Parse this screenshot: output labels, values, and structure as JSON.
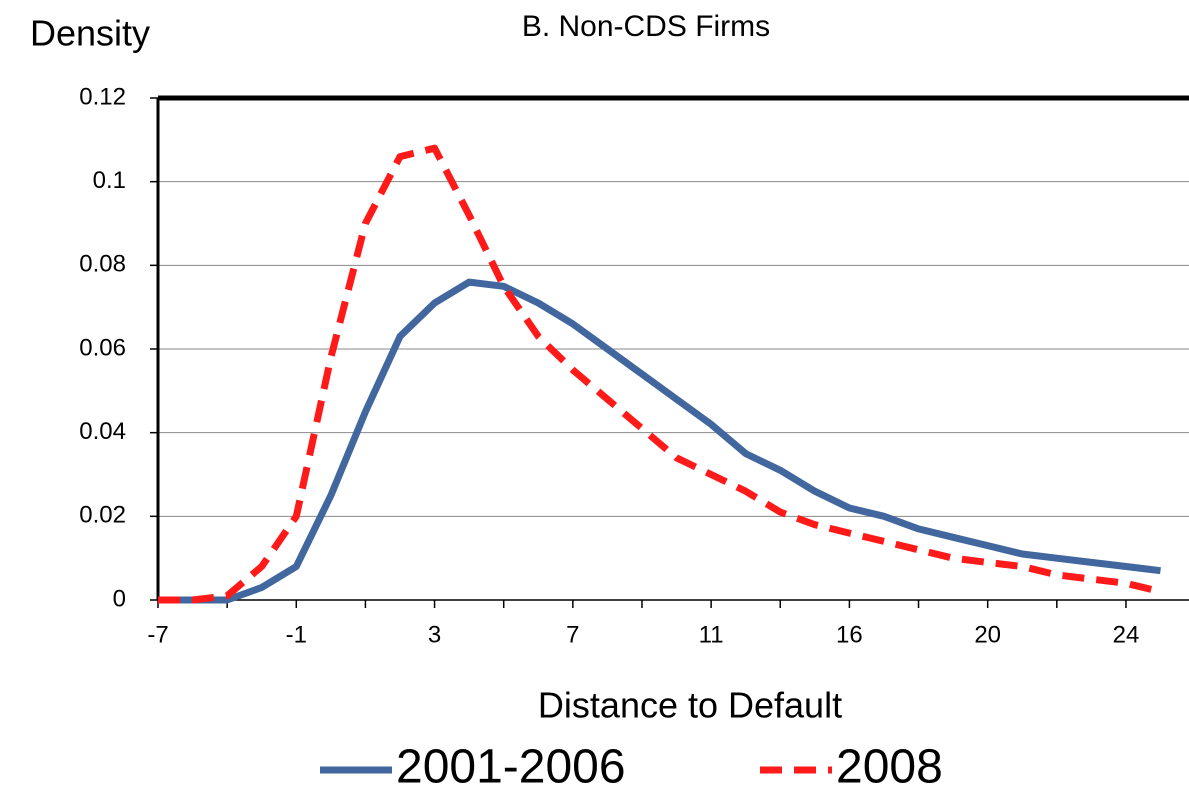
{
  "chart_data": {
    "type": "line",
    "title": "B. Non-CDS Firms",
    "y_label": "Density",
    "x_label": "Distance to Default",
    "categories": [
      "-7",
      null,
      null,
      null,
      "-1",
      null,
      null,
      null,
      "3",
      null,
      null,
      null,
      "7",
      null,
      null,
      null,
      "11",
      null,
      null,
      null,
      "16",
      null,
      null,
      null,
      "20",
      null,
      null,
      null,
      "24",
      null
    ],
    "series": [
      {
        "name": "2001-2006",
        "color": "#41679e",
        "dash": "solid",
        "values": [
          0,
          0,
          0,
          0.003,
          0.008,
          0.025,
          0.045,
          0.063,
          0.071,
          0.076,
          0.075,
          0.071,
          0.066,
          0.06,
          0.054,
          0.048,
          0.042,
          0.035,
          0.031,
          0.026,
          0.022,
          0.02,
          0.017,
          0.015,
          0.013,
          0.011,
          0.01,
          0.009,
          0.008,
          0.007
        ]
      },
      {
        "name": "2008",
        "color": "#ff1a1a",
        "dash": "dashed",
        "values": [
          0,
          0,
          0.001,
          0.008,
          0.02,
          0.058,
          0.09,
          0.106,
          0.108,
          0.092,
          0.075,
          0.063,
          0.055,
          0.048,
          0.041,
          0.034,
          0.03,
          0.026,
          0.021,
          0.018,
          0.016,
          0.014,
          0.012,
          0.01,
          0.009,
          0.008,
          0.006,
          0.005,
          0.004,
          0.002
        ]
      }
    ],
    "ylim": [
      0,
      0.12
    ],
    "yticks": [
      0,
      0.02,
      0.04,
      0.06,
      0.08,
      0.1,
      0.12
    ],
    "grid": true
  }
}
